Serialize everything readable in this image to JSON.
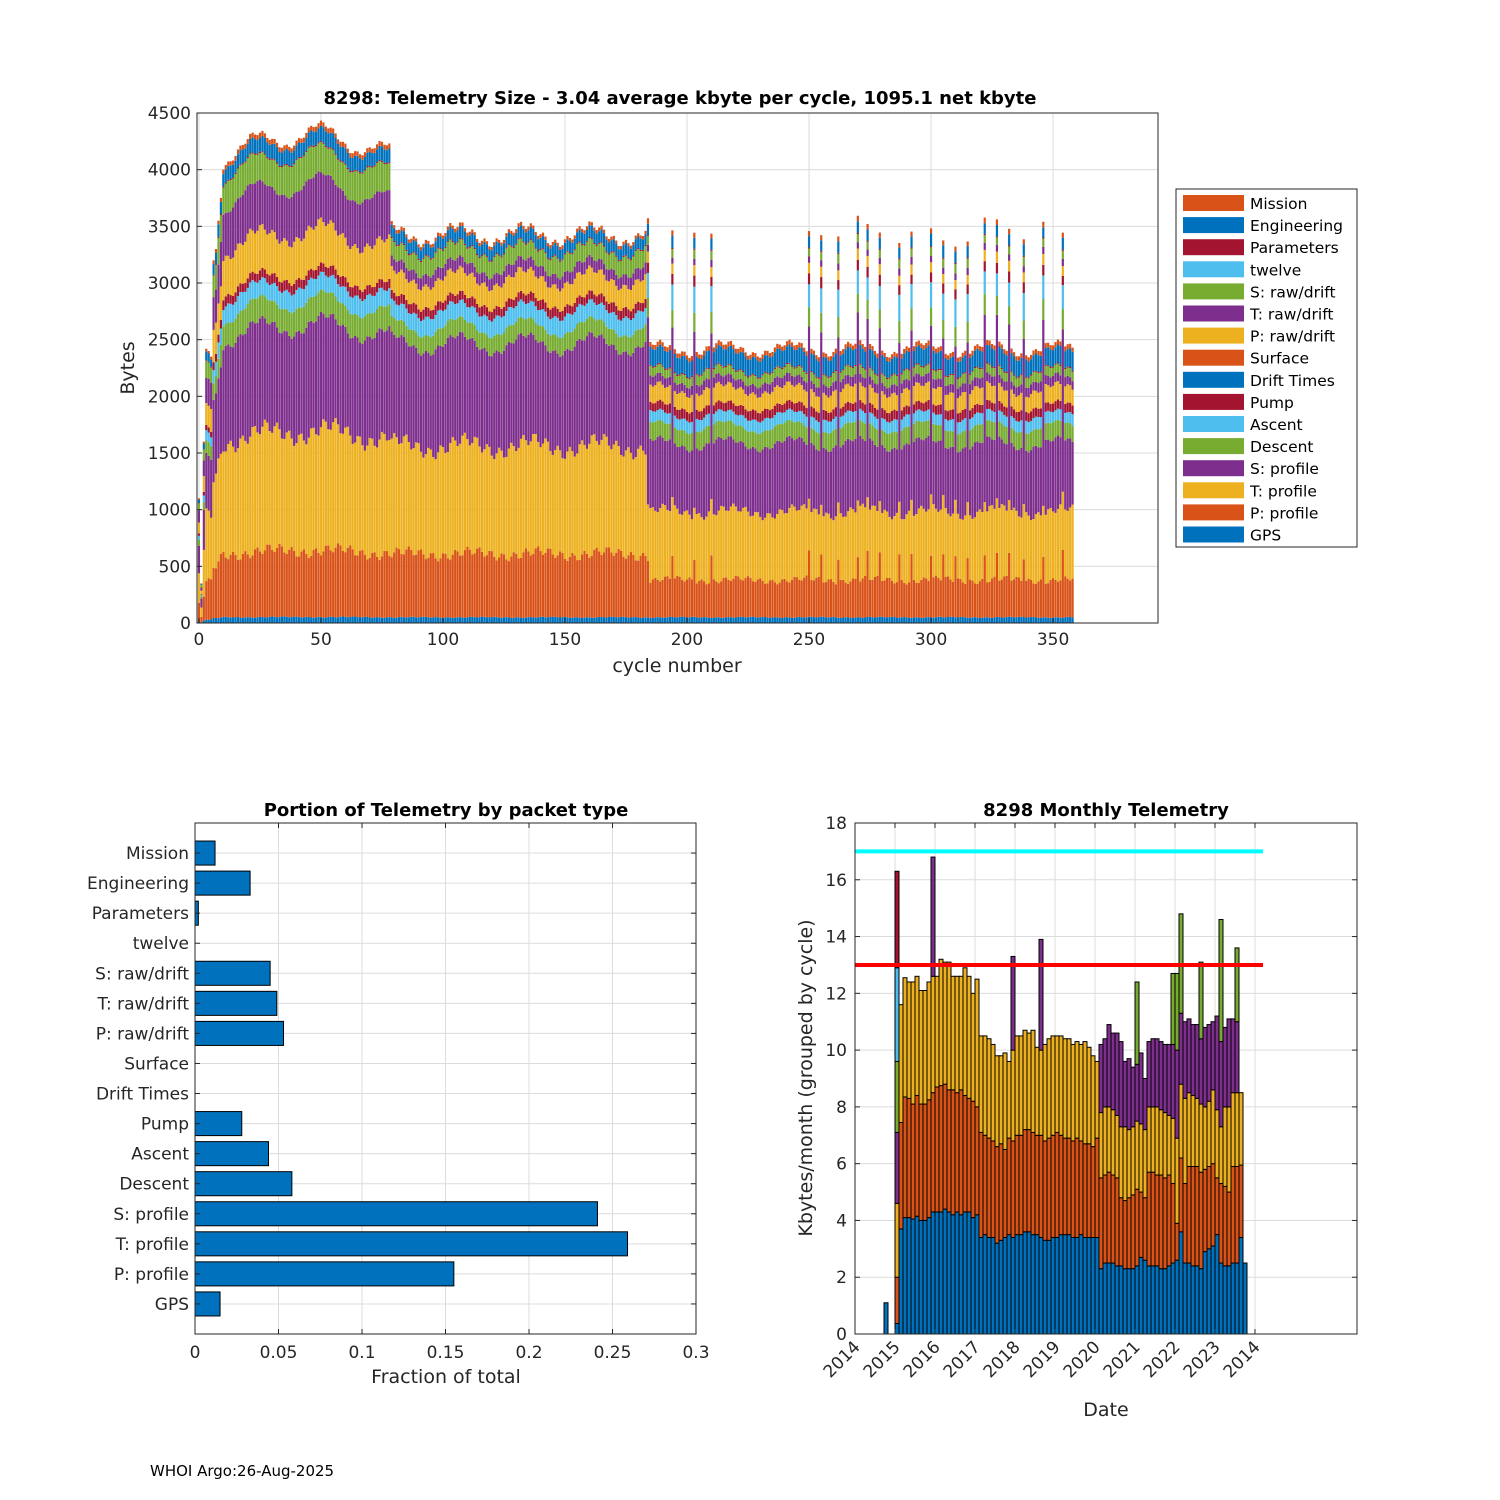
{
  "footer": "WHOI Argo:26-Aug-2025",
  "chart_data": [
    {
      "type": "bar",
      "stacked": true,
      "title": "8298: Telemetry Size - 3.04 average kbyte per cycle, 1095.1 net kbyte",
      "xlabel": "cycle number",
      "ylabel": "Bytes",
      "xlim": [
        -0.8,
        393
      ],
      "ylim": [
        0,
        4500
      ],
      "xticks": [
        0,
        50,
        100,
        150,
        200,
        250,
        300,
        350
      ],
      "yticks": [
        0,
        500,
        1000,
        1500,
        2000,
        2500,
        3000,
        3500,
        4000,
        4500
      ],
      "grid": true,
      "legend_position": "outside-right",
      "series_bottom_to_top": [
        {
          "name": "GPS",
          "color": "#0072BD"
        },
        {
          "name": "P: profile",
          "color": "#D95319"
        },
        {
          "name": "T: profile",
          "color": "#EDB120"
        },
        {
          "name": "S: profile",
          "color": "#7E2F8E"
        },
        {
          "name": "Descent",
          "color": "#77AC30"
        },
        {
          "name": "Ascent",
          "color": "#4DBEEE"
        },
        {
          "name": "Pump",
          "color": "#A2142F"
        },
        {
          "name": "Drift Times",
          "color": "#0072BD"
        },
        {
          "name": "Surface",
          "color": "#D95319"
        },
        {
          "name": "P: raw/drift",
          "color": "#EDB120"
        },
        {
          "name": "T: raw/drift",
          "color": "#7E2F8E"
        },
        {
          "name": "S: raw/drift",
          "color": "#77AC30"
        },
        {
          "name": "twelve",
          "color": "#4DBEEE"
        },
        {
          "name": "Parameters",
          "color": "#A2142F"
        },
        {
          "name": "Engineering",
          "color": "#0072BD"
        },
        {
          "name": "Mission",
          "color": "#D95319"
        }
      ],
      "legend": [
        "Mission",
        "Engineering",
        "Parameters",
        "twelve",
        "S: raw/drift",
        "T: raw/drift",
        "P: raw/drift",
        "Surface",
        "Drift Times",
        "Pump",
        "Ascent",
        "Descent",
        "S: profile",
        "T: profile",
        "P: profile",
        "GPS"
      ],
      "early_totals": {
        "0": 1100,
        "1": 350,
        "2": 1600,
        "3": 2420,
        "4": 2400,
        "5": 2350,
        "6": 3200,
        "7": 3300,
        "8": 3550,
        "9": 3750
      },
      "phases": [
        {
          "from": 0,
          "to": 78,
          "typical_bytes": [
            50,
            560,
            1000,
            900,
            200,
            150,
            80,
            0,
            0,
            350,
            400,
            250,
            0,
            10,
            120,
            40
          ]
        },
        {
          "from": 79,
          "to": 183,
          "typical_bytes": [
            50,
            560,
            950,
            900,
            150,
            150,
            80,
            0,
            0,
            200,
            100,
            150,
            0,
            10,
            100,
            30
          ]
        },
        {
          "from": 184,
          "to": 358,
          "typical_bytes": [
            50,
            330,
            600,
            600,
            150,
            100,
            80,
            0,
            0,
            150,
            80,
            80,
            0,
            10,
            150,
            40
          ]
        }
      ],
      "spike_cycles": [
        184,
        194,
        203,
        210,
        250,
        255,
        262,
        270,
        274,
        279,
        287,
        292,
        300,
        305,
        310,
        315,
        322,
        327,
        332,
        338,
        346,
        354
      ],
      "spike_bytes": [
        50,
        550,
        485,
        1500,
        175,
        220,
        90,
        0,
        0,
        90,
        60,
        75,
        0,
        10,
        100,
        45
      ]
    },
    {
      "type": "bar",
      "orientation": "horizontal",
      "title": "Portion of Telemetry by packet type",
      "xlabel": "Fraction of total",
      "ylabel": "",
      "xlim": [
        0,
        0.3
      ],
      "xticks": [
        0,
        0.05,
        0.1,
        0.15,
        0.2,
        0.25,
        0.3
      ],
      "xtick_labels": [
        "0",
        "0.05",
        "0.1",
        "0.15",
        "0.2",
        "0.25",
        "0.3"
      ],
      "categories": [
        "Mission",
        "Engineering",
        "Parameters",
        "twelve",
        "S: raw/drift",
        "T: raw/drift",
        "P: raw/drift",
        "Surface",
        "Drift Times",
        "Pump",
        "Ascent",
        "Descent",
        "S: profile",
        "T: profile",
        "P: profile",
        "GPS"
      ],
      "values": [
        0.012,
        0.033,
        0.002,
        0,
        0.045,
        0.049,
        0.053,
        0,
        0,
        0.028,
        0.044,
        0.058,
        0.241,
        0.259,
        0.155,
        0.015
      ],
      "color": "#0072BD",
      "grid": true
    },
    {
      "type": "bar",
      "stacked": true,
      "title": "8298 Monthly Telemetry",
      "xlabel": "Date",
      "ylabel": "Kbytes/month (grouped by cycle)",
      "ylim": [
        0,
        18
      ],
      "yticks": [
        0,
        2,
        4,
        6,
        8,
        10,
        12,
        14,
        16,
        18
      ],
      "xlim": [
        0,
        125.5
      ],
      "xticks": [
        0,
        10,
        20,
        30,
        40,
        50,
        60,
        70,
        80,
        90,
        100
      ],
      "xtick_labels": [
        "2014",
        "2015",
        "2016",
        "2017",
        "2018",
        "2019",
        "2020",
        "2021",
        "2022",
        "2023",
        "2014"
      ],
      "grid": true,
      "segment_colors": [
        "#0072BD",
        "#D95319",
        "#EDB120",
        "#7E2F8E",
        "#77AC30",
        "#4DBEEE",
        "#A2142F"
      ],
      "reference_lines": [
        {
          "y": 17,
          "color": "#00FFFF",
          "x_from": 0,
          "x_to": 102
        },
        {
          "y": 13,
          "color": "#FF0000",
          "x_from": 0,
          "x_to": 102
        }
      ],
      "lone_bar": {
        "x": 7.75,
        "value": 1.1
      },
      "first_bar": {
        "x": 10.5,
        "cumulative_tops": [
          0.37,
          2.0,
          4.6,
          7.1,
          9.6,
          12.9,
          16.3
        ]
      },
      "bars_start_x": 11.5,
      "cumulative_tops": {
        "blue": [
          3.7,
          4.1,
          4.1,
          4.05,
          4.15,
          4.0,
          4.0,
          4.1,
          4.3,
          4.3,
          4.3,
          4.4,
          4.3,
          4.2,
          4.3,
          4.2,
          4.3,
          4.3,
          4.1,
          4.2,
          3.4,
          3.5,
          3.4,
          3.4,
          3.2,
          3.3,
          3.4,
          3.5,
          3.4,
          3.5,
          3.5,
          3.6,
          3.6,
          3.5,
          3.5,
          3.4,
          3.3,
          3.3,
          3.4,
          3.4,
          3.5,
          3.5,
          3.5,
          3.4,
          3.4,
          3.5,
          3.4,
          3.4,
          3.4,
          3.4,
          2.3,
          2.5,
          2.5,
          2.5,
          2.4,
          2.4,
          2.3,
          2.3,
          2.3,
          2.4,
          2.7,
          2.6,
          2.4,
          2.4,
          2.4,
          2.3,
          2.3,
          2.4,
          2.5,
          2.6,
          3.6,
          2.5,
          2.5,
          2.4,
          2.4,
          2.3,
          2.9,
          3.0,
          3.1,
          3.5,
          2.5,
          2.4,
          2.4,
          2.5,
          2.5,
          3.4,
          2.5
        ],
        "orange": [
          7.45,
          8.35,
          8.3,
          8.1,
          8.4,
          8.1,
          8.1,
          8.25,
          8.5,
          8.7,
          8.75,
          8.8,
          8.6,
          8.6,
          8.5,
          8.6,
          8.4,
          8.3,
          8.2,
          8.0,
          7.1,
          7.0,
          6.9,
          6.8,
          6.6,
          6.7,
          6.5,
          6.9,
          6.8,
          7.0,
          7.0,
          7.2,
          7.2,
          7.1,
          7.0,
          7.0,
          6.8,
          6.9,
          7.0,
          7.1,
          7.0,
          6.9,
          6.9,
          6.8,
          6.9,
          6.8,
          6.7,
          6.7,
          6.6,
          6.9,
          5.5,
          5.6,
          5.7,
          5.6,
          5.5,
          4.8,
          4.7,
          4.8,
          4.9,
          5.1,
          5.0,
          4.8,
          5.7,
          5.7,
          5.6,
          5.6,
          5.5,
          5.6,
          5.3,
          3.9,
          6.2,
          5.3,
          5.9,
          5.9,
          5.9,
          5.7,
          5.8,
          5.9,
          6.0,
          5.5,
          5.3,
          5.2,
          5.0,
          5.9,
          5.9,
          5.95,
          2.5
        ],
        "yellow": [
          11.6,
          12.55,
          12.4,
          12.4,
          12.6,
          12.1,
          12.1,
          12.4,
          12.6,
          12.6,
          13.2,
          13.1,
          13.1,
          12.6,
          12.6,
          12.6,
          12.9,
          12.6,
          12.0,
          12.5,
          10.5,
          10.5,
          10.4,
          10.2,
          9.8,
          9.8,
          9.9,
          9.6,
          10.0,
          10.5,
          10.5,
          10.7,
          10.6,
          10.7,
          10.1,
          10.0,
          10.2,
          10.4,
          10.5,
          10.5,
          10.5,
          10.4,
          10.4,
          10.2,
          10.3,
          10.2,
          10.3,
          10.1,
          9.8,
          9.6,
          7.8,
          8.0,
          8.0,
          7.9,
          7.7,
          7.3,
          7.3,
          7.2,
          7.3,
          7.5,
          7.4,
          7.2,
          8.0,
          8.0,
          8.0,
          7.9,
          7.8,
          7.7,
          7.6,
          6.9,
          8.8,
          8.3,
          8.5,
          8.4,
          8.3,
          8.1,
          8.0,
          8.2,
          8.6,
          7.9,
          7.3,
          8.0,
          8.0,
          8.5,
          8.5,
          8.5,
          2.5
        ],
        "purple": [
          null,
          null,
          null,
          null,
          null,
          null,
          null,
          null,
          16.8,
          null,
          null,
          null,
          null,
          null,
          null,
          null,
          null,
          null,
          null,
          null,
          null,
          null,
          null,
          null,
          null,
          null,
          null,
          null,
          13.3,
          null,
          null,
          null,
          null,
          null,
          null,
          13.9,
          null,
          null,
          null,
          null,
          null,
          null,
          null,
          null,
          null,
          null,
          null,
          null,
          null,
          null,
          10.2,
          10.4,
          10.9,
          10.6,
          10.6,
          10.3,
          9.6,
          9.7,
          9.4,
          9.5,
          9.9,
          9.0,
          10.3,
          10.4,
          10.4,
          10.3,
          10.2,
          10.2,
          10.2,
          10.0,
          11.3,
          11.0,
          11.1,
          10.9,
          10.9,
          10.4,
          10.8,
          10.9,
          11.0,
          11.2,
          10.3,
          10.8,
          11.1,
          11.1,
          11.0,
          null,
          null
        ],
        "green": [
          null,
          null,
          null,
          null,
          null,
          null,
          null,
          null,
          null,
          null,
          null,
          null,
          null,
          null,
          null,
          null,
          null,
          null,
          null,
          null,
          null,
          null,
          null,
          null,
          null,
          null,
          null,
          null,
          null,
          null,
          null,
          null,
          null,
          null,
          null,
          null,
          null,
          null,
          null,
          null,
          null,
          null,
          null,
          null,
          null,
          null,
          null,
          null,
          null,
          null,
          null,
          null,
          null,
          null,
          null,
          null,
          null,
          null,
          null,
          12.4,
          null,
          null,
          null,
          null,
          null,
          null,
          null,
          null,
          12.7,
          12.7,
          14.8,
          null,
          null,
          null,
          null,
          13.1,
          null,
          null,
          null,
          null,
          14.6,
          null,
          null,
          null,
          13.6,
          null,
          null
        ]
      }
    }
  ]
}
